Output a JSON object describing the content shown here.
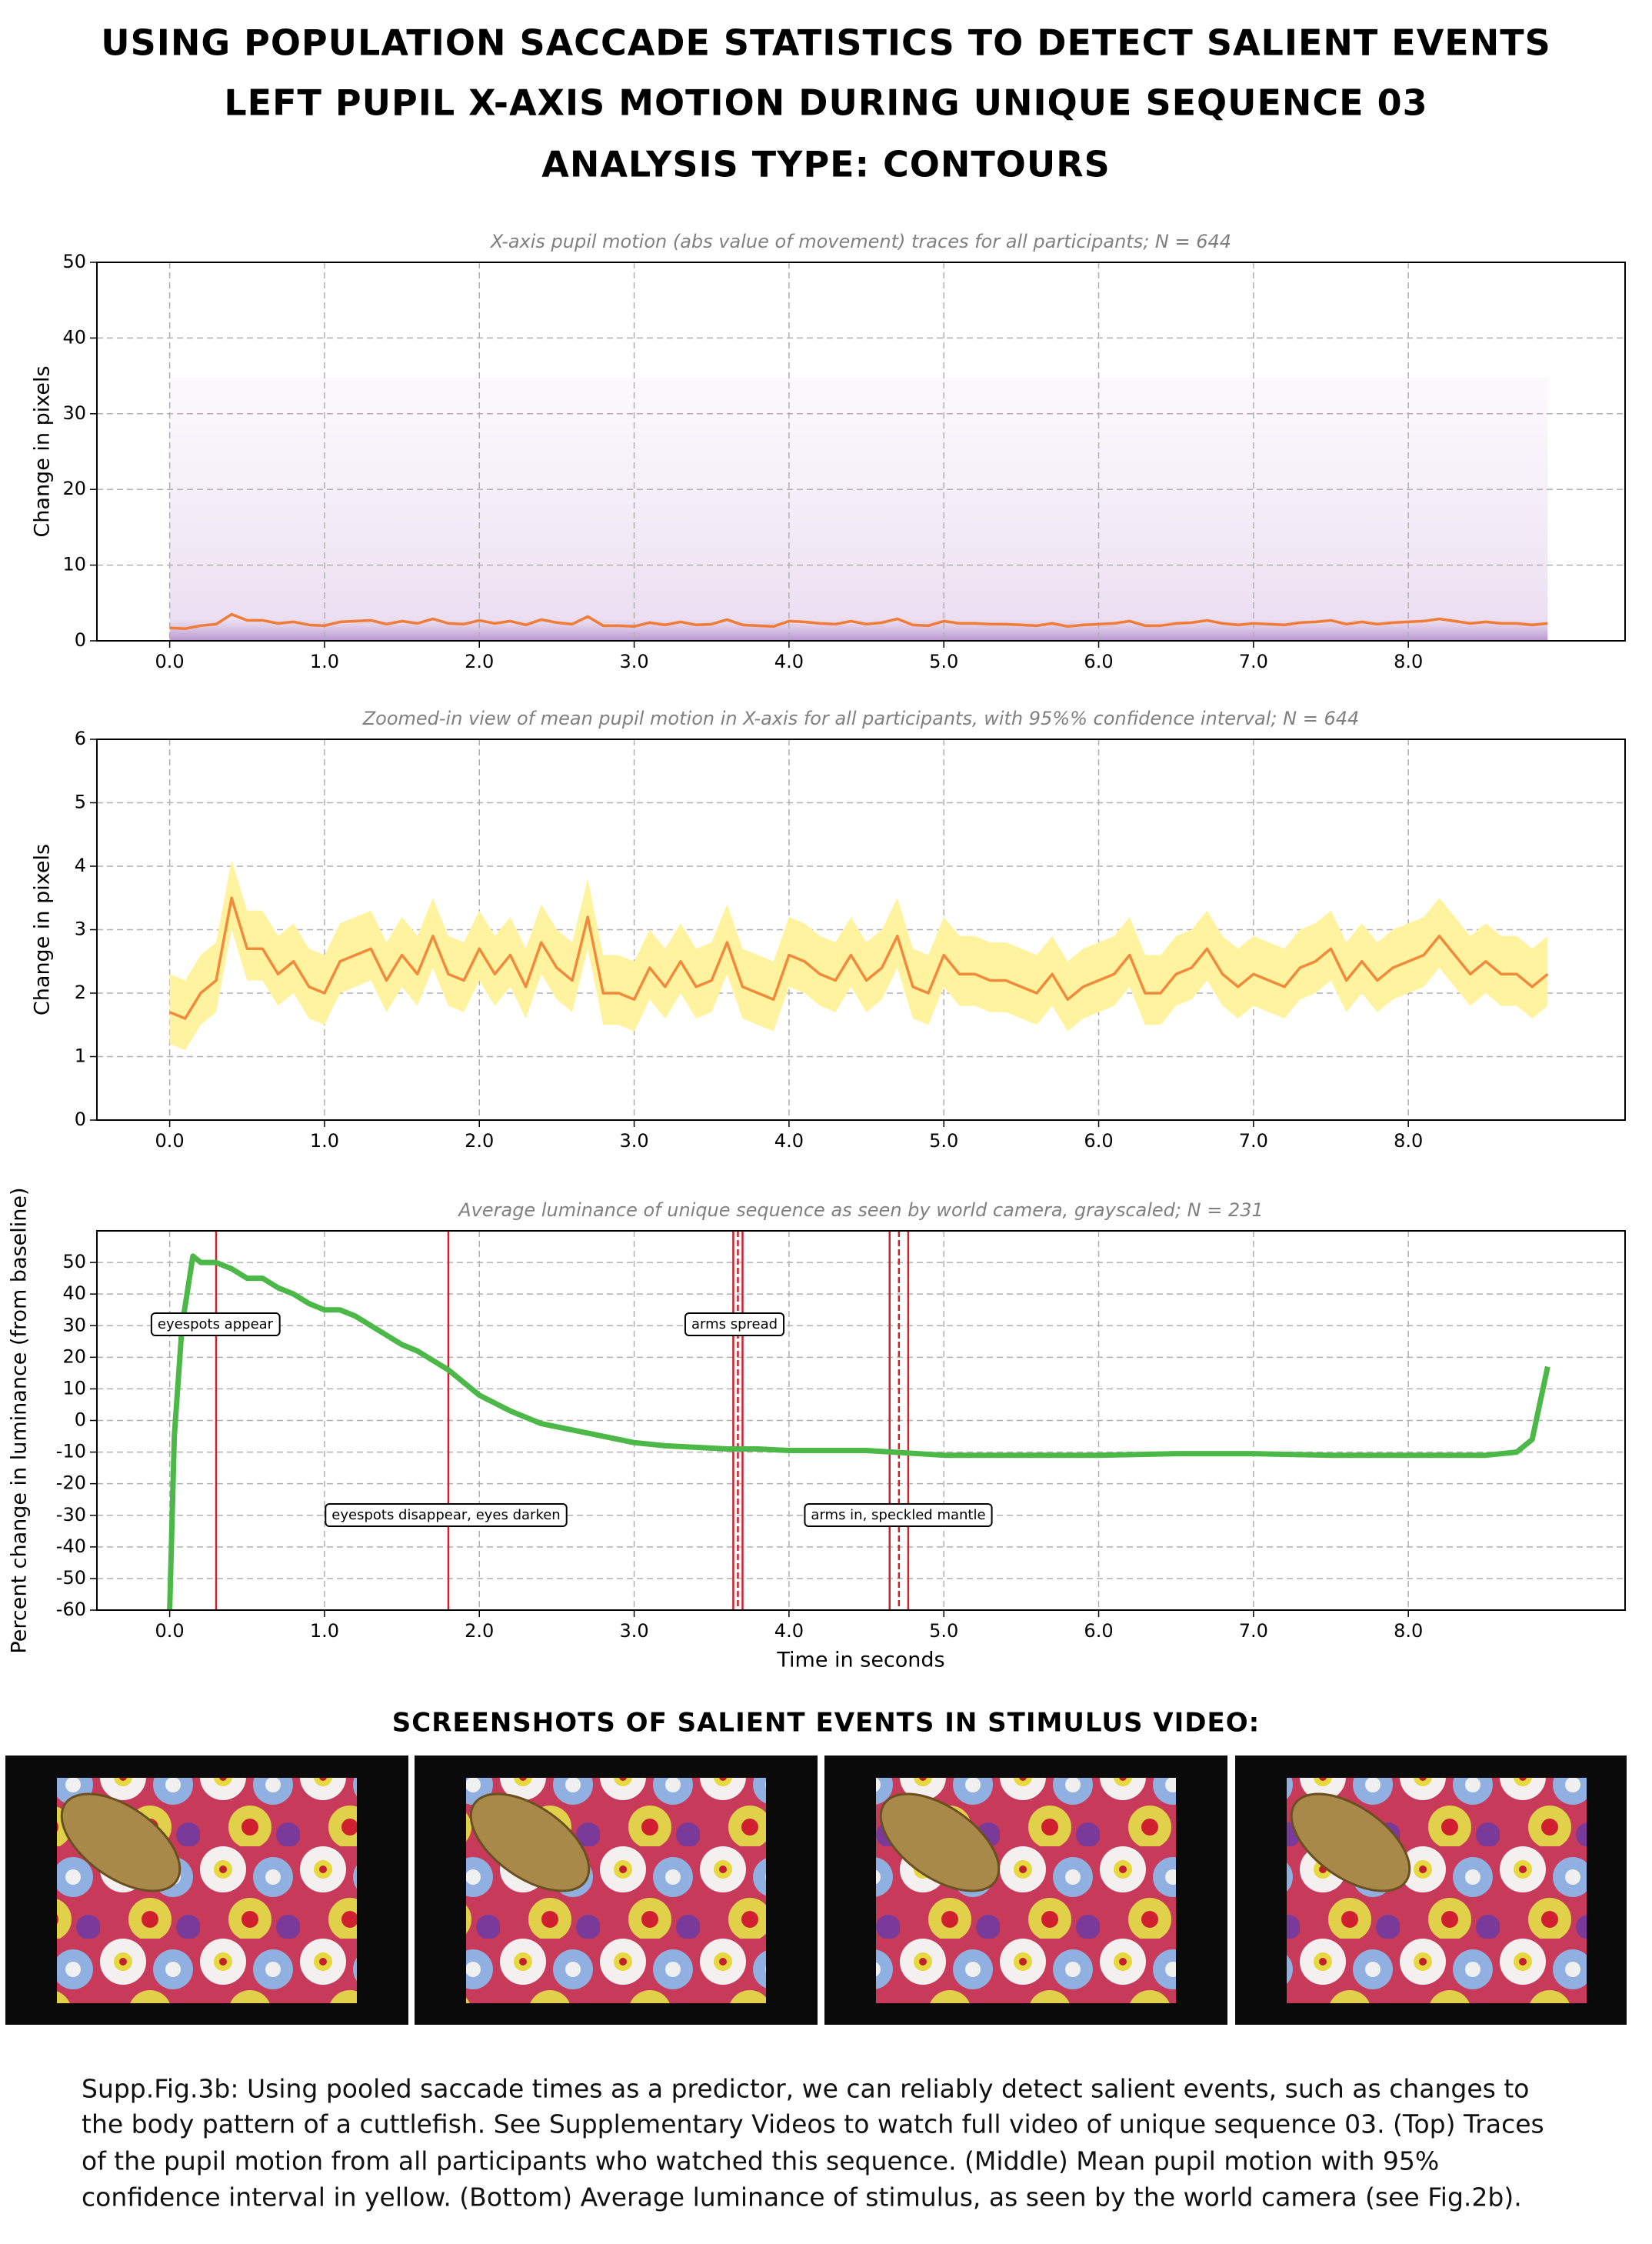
{
  "header": {
    "lines": [
      "USING POPULATION SACCADE STATISTICS TO DETECT SALIENT EVENTS",
      "LEFT PUPIL X-AXIS MOTION DURING UNIQUE SEQUENCE 03",
      "ANALYSIS TYPE: CONTOURS"
    ]
  },
  "chart_data": [
    {
      "type": "line",
      "title": "X-axis pupil motion (abs value of movement) traces for all participants; N = 644",
      "ylabel": "Change in pixels",
      "grid": true,
      "x": [
        0,
        0.1,
        0.2,
        0.3,
        0.4,
        0.5,
        0.6,
        0.7,
        0.8,
        0.9,
        1,
        1.1,
        1.2,
        1.3,
        1.4,
        1.5,
        1.6,
        1.7,
        1.8,
        1.9,
        2,
        2.1,
        2.2,
        2.3,
        2.4,
        2.5,
        2.6,
        2.7,
        2.8,
        2.9,
        3,
        3.1,
        3.2,
        3.3,
        3.4,
        3.5,
        3.6,
        3.7,
        3.8,
        3.9,
        4,
        4.1,
        4.2,
        4.3,
        4.4,
        4.5,
        4.6,
        4.7,
        4.8,
        4.9,
        5,
        5.1,
        5.2,
        5.3,
        5.4,
        5.5,
        5.6,
        5.7,
        5.8,
        5.9,
        6,
        6.1,
        6.2,
        6.3,
        6.4,
        6.5,
        6.6,
        6.7,
        6.8,
        6.9,
        7,
        7.1,
        7.2,
        7.3,
        7.4,
        7.5,
        7.6,
        7.7,
        7.8,
        7.9,
        8,
        8.1,
        8.2,
        8.3,
        8.4,
        8.5,
        8.6,
        8.7,
        8.8,
        8.9
      ],
      "series": [
        {
          "color": "#f07c35",
          "values": [
            1.7,
            1.6,
            2.0,
            2.2,
            3.5,
            2.7,
            2.7,
            2.3,
            2.5,
            2.1,
            2.0,
            2.5,
            2.6,
            2.7,
            2.2,
            2.6,
            2.3,
            2.9,
            2.3,
            2.2,
            2.7,
            2.3,
            2.6,
            2.1,
            2.8,
            2.4,
            2.2,
            3.2,
            2.0,
            2.0,
            1.9,
            2.4,
            2.1,
            2.5,
            2.1,
            2.2,
            2.8,
            2.1,
            2.0,
            1.9,
            2.6,
            2.5,
            2.3,
            2.2,
            2.6,
            2.2,
            2.4,
            2.9,
            2.1,
            2.0,
            2.6,
            2.3,
            2.3,
            2.2,
            2.2,
            2.1,
            2.0,
            2.3,
            1.9,
            2.1,
            2.2,
            2.3,
            2.6,
            2.0,
            2.0,
            2.3,
            2.4,
            2.7,
            2.3,
            2.1,
            2.3,
            2.2,
            2.1,
            2.4,
            2.5,
            2.7,
            2.2,
            2.5,
            2.2,
            2.4,
            2.5,
            2.6,
            2.9,
            2.6,
            2.3,
            2.5,
            2.3,
            2.3,
            2.1,
            2.3
          ]
        }
      ],
      "traces_color": "#b07cc8",
      "xlim": [
        -0.47,
        9.4
      ],
      "ylim": [
        0,
        50
      ],
      "yticks": [
        0,
        10,
        20,
        30,
        40,
        50
      ],
      "xticks": [
        {
          "value": 0,
          "label": "0.0"
        },
        {
          "value": 1,
          "label": "1.0"
        },
        {
          "value": 2,
          "label": "2.0"
        },
        {
          "value": 3,
          "label": "3.0"
        },
        {
          "value": 4,
          "label": "4.0"
        },
        {
          "value": 5,
          "label": "5.0"
        },
        {
          "value": 6,
          "label": "6.0"
        },
        {
          "value": 7,
          "label": "7.0"
        },
        {
          "value": 8,
          "label": "8.0"
        }
      ]
    },
    {
      "type": "line",
      "title": "Zoomed-in view of mean pupil motion in X-axis for all participants, with 95%% confidence interval; N = 644",
      "ylabel": "Change in pixels",
      "grid": true,
      "x": [
        0,
        0.1,
        0.2,
        0.3,
        0.4,
        0.5,
        0.6,
        0.7,
        0.8,
        0.9,
        1,
        1.1,
        1.2,
        1.3,
        1.4,
        1.5,
        1.6,
        1.7,
        1.8,
        1.9,
        2,
        2.1,
        2.2,
        2.3,
        2.4,
        2.5,
        2.6,
        2.7,
        2.8,
        2.9,
        3,
        3.1,
        3.2,
        3.3,
        3.4,
        3.5,
        3.6,
        3.7,
        3.8,
        3.9,
        4,
        4.1,
        4.2,
        4.3,
        4.4,
        4.5,
        4.6,
        4.7,
        4.8,
        4.9,
        5,
        5.1,
        5.2,
        5.3,
        5.4,
        5.5,
        5.6,
        5.7,
        5.8,
        5.9,
        6,
        6.1,
        6.2,
        6.3,
        6.4,
        6.5,
        6.6,
        6.7,
        6.8,
        6.9,
        7,
        7.1,
        7.2,
        7.3,
        7.4,
        7.5,
        7.6,
        7.7,
        7.8,
        7.9,
        8,
        8.1,
        8.2,
        8.3,
        8.4,
        8.5,
        8.6,
        8.7,
        8.8,
        8.9
      ],
      "band": {
        "color": "#fff3a0",
        "lower": [
          1.2,
          1.1,
          1.5,
          1.7,
          3.0,
          2.2,
          2.2,
          1.8,
          2.0,
          1.6,
          1.5,
          2.0,
          2.1,
          2.2,
          1.7,
          2.1,
          1.8,
          2.4,
          1.8,
          1.7,
          2.2,
          1.8,
          2.1,
          1.6,
          2.3,
          1.9,
          1.7,
          2.7,
          1.5,
          1.5,
          1.4,
          1.9,
          1.6,
          2.0,
          1.6,
          1.7,
          2.3,
          1.6,
          1.5,
          1.4,
          2.1,
          2.0,
          1.8,
          1.7,
          2.1,
          1.7,
          1.9,
          2.4,
          1.6,
          1.5,
          2.1,
          1.8,
          1.8,
          1.7,
          1.7,
          1.6,
          1.5,
          1.8,
          1.4,
          1.6,
          1.7,
          1.8,
          2.1,
          1.5,
          1.5,
          1.8,
          1.9,
          2.2,
          1.8,
          1.6,
          1.8,
          1.7,
          1.6,
          1.9,
          2.0,
          2.2,
          1.7,
          2.0,
          1.7,
          1.9,
          2.0,
          2.1,
          2.4,
          2.1,
          1.8,
          2.0,
          1.8,
          1.8,
          1.6,
          1.8
        ],
        "upper": [
          2.3,
          2.2,
          2.6,
          2.8,
          4.1,
          3.3,
          3.3,
          2.9,
          3.1,
          2.7,
          2.6,
          3.1,
          3.2,
          3.3,
          2.8,
          3.2,
          2.9,
          3.5,
          2.9,
          2.8,
          3.3,
          2.9,
          3.2,
          2.7,
          3.4,
          3.0,
          2.8,
          3.8,
          2.6,
          2.6,
          2.5,
          3.0,
          2.7,
          3.1,
          2.7,
          2.8,
          3.4,
          2.7,
          2.6,
          2.5,
          3.2,
          3.1,
          2.9,
          2.8,
          3.2,
          2.8,
          3.0,
          3.5,
          2.7,
          2.6,
          3.2,
          2.9,
          2.9,
          2.8,
          2.8,
          2.7,
          2.6,
          2.9,
          2.5,
          2.7,
          2.8,
          2.9,
          3.2,
          2.6,
          2.6,
          2.9,
          3.0,
          3.3,
          2.9,
          2.7,
          2.9,
          2.8,
          2.7,
          3.0,
          3.1,
          3.3,
          2.8,
          3.1,
          2.8,
          3.0,
          3.1,
          3.2,
          3.5,
          3.2,
          2.9,
          3.1,
          2.9,
          2.9,
          2.7,
          2.9
        ]
      },
      "series": [
        {
          "color": "#f08a3c",
          "values": [
            1.7,
            1.6,
            2.0,
            2.2,
            3.5,
            2.7,
            2.7,
            2.3,
            2.5,
            2.1,
            2.0,
            2.5,
            2.6,
            2.7,
            2.2,
            2.6,
            2.3,
            2.9,
            2.3,
            2.2,
            2.7,
            2.3,
            2.6,
            2.1,
            2.8,
            2.4,
            2.2,
            3.2,
            2.0,
            2.0,
            1.9,
            2.4,
            2.1,
            2.5,
            2.1,
            2.2,
            2.8,
            2.1,
            2.0,
            1.9,
            2.6,
            2.5,
            2.3,
            2.2,
            2.6,
            2.2,
            2.4,
            2.9,
            2.1,
            2.0,
            2.6,
            2.3,
            2.3,
            2.2,
            2.2,
            2.1,
            2.0,
            2.3,
            1.9,
            2.1,
            2.2,
            2.3,
            2.6,
            2.0,
            2.0,
            2.3,
            2.4,
            2.7,
            2.3,
            2.1,
            2.3,
            2.2,
            2.1,
            2.4,
            2.5,
            2.7,
            2.2,
            2.5,
            2.2,
            2.4,
            2.5,
            2.6,
            2.9,
            2.6,
            2.3,
            2.5,
            2.3,
            2.3,
            2.1,
            2.3
          ]
        }
      ],
      "xlim": [
        -0.47,
        9.4
      ],
      "ylim": [
        0,
        6
      ],
      "yticks": [
        0,
        1,
        2,
        3,
        4,
        5,
        6
      ],
      "xticks": [
        {
          "value": 0,
          "label": "0.0"
        },
        {
          "value": 1,
          "label": "1.0"
        },
        {
          "value": 2,
          "label": "2.0"
        },
        {
          "value": 3,
          "label": "3.0"
        },
        {
          "value": 4,
          "label": "4.0"
        },
        {
          "value": 5,
          "label": "5.0"
        },
        {
          "value": 6,
          "label": "6.0"
        },
        {
          "value": 7,
          "label": "7.0"
        },
        {
          "value": 8,
          "label": "8.0"
        }
      ]
    },
    {
      "type": "line",
      "title": "Average luminance of unique sequence as seen by world camera, grayscaled; N = 231",
      "ylabel": "Percent change in luminance (from baseline)",
      "xlabel": "Time in seconds",
      "grid": true,
      "x": [
        0,
        0.03,
        0.08,
        0.15,
        0.2,
        0.3,
        0.4,
        0.5,
        0.6,
        0.7,
        0.8,
        0.9,
        1.0,
        1.1,
        1.2,
        1.3,
        1.4,
        1.5,
        1.6,
        1.7,
        1.8,
        1.9,
        2.0,
        2.2,
        2.4,
        2.6,
        2.8,
        3.0,
        3.2,
        3.4,
        3.6,
        3.8,
        4.0,
        4.5,
        5.0,
        5.5,
        6.0,
        6.5,
        7.0,
        7.5,
        8.0,
        8.5,
        8.7,
        8.8,
        8.9
      ],
      "series": [
        {
          "color": "#4cb847",
          "values": [
            -60,
            -5,
            30,
            52,
            50,
            50,
            48,
            45,
            45,
            42,
            40,
            37,
            35,
            35,
            33,
            30,
            27,
            24,
            22,
            19,
            16,
            12,
            8,
            3,
            -1,
            -3,
            -5,
            -7,
            -8,
            -8.5,
            -9,
            -9,
            -9.5,
            -9.5,
            -11,
            -11,
            -11,
            -10.5,
            -10.5,
            -11,
            -11,
            -11,
            -10,
            -6,
            17
          ]
        }
      ],
      "event_lines": {
        "color": "#d0202a",
        "solid": [
          0.3,
          1.8,
          3.64,
          3.7,
          4.65,
          4.77
        ],
        "dashed": [
          3.67,
          4.71
        ]
      },
      "annotations": [
        "eyespots appear",
        "arms spread",
        "eyespots disappear, eyes darken",
        "arms in, speckled mantle"
      ],
      "xlim": [
        -0.47,
        9.4
      ],
      "ylim": [
        -60,
        60
      ],
      "yticks": [
        -60,
        -50,
        -40,
        -30,
        -20,
        -10,
        0,
        10,
        20,
        30,
        40,
        50
      ],
      "xticks": [
        {
          "value": 0,
          "label": "0.0"
        },
        {
          "value": 1,
          "label": "1.0"
        },
        {
          "value": 2,
          "label": "2.0"
        },
        {
          "value": 3,
          "label": "3.0"
        },
        {
          "value": 4,
          "label": "4.0"
        },
        {
          "value": 5,
          "label": "5.0"
        },
        {
          "value": 6,
          "label": "6.0"
        },
        {
          "value": 7,
          "label": "7.0"
        },
        {
          "value": 8,
          "label": "8.0"
        }
      ]
    }
  ],
  "section_heading": "SCREENSHOTS OF SALIENT EVENTS IN STIMULUS VIDEO:",
  "caption": {
    "lines": [
      "Supp.Fig.3b: Using pooled saccade times as a predictor, we can reliably detect salient events, such as changes to",
      "the body pattern of a cuttlefish. See Supplementary Videos to watch full video of unique sequence 03. (Top) Traces",
      "of the pupil motion from all participants who watched this sequence. (Middle) Mean pupil motion with 95%",
      "confidence interval in yellow.  (Bottom) Average luminance of stimulus, as seen by the world camera (see Fig.2b)."
    ]
  }
}
